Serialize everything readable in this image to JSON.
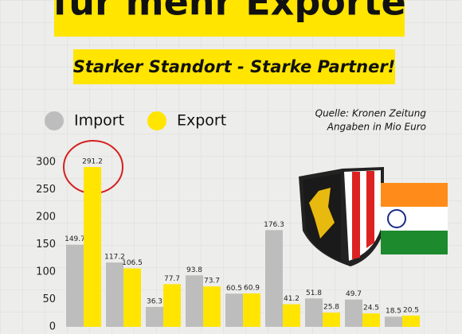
{
  "chart_data": {
    "type": "bar",
    "title": "für mehr Exporte",
    "subtitle": "Starker Standort - Starke Partner!",
    "annotations": [
      "Quelle: Kronen Zeitung",
      "Angaben in Mio Euro"
    ],
    "categories": [
      null,
      null,
      null,
      null,
      null,
      null,
      null,
      null,
      null
    ],
    "series": [
      {
        "name": "Import",
        "color": "#bdbdbd",
        "values": [
          149.7,
          117.2,
          36.3,
          93.8,
          60.5,
          176.3,
          51.8,
          49.7,
          18.5
        ]
      },
      {
        "name": "Export",
        "color": "#ffe500",
        "values": [
          291.2,
          106.5,
          77.7,
          73.7,
          60.9,
          41.2,
          25.8,
          24.5,
          20.5
        ]
      }
    ],
    "ylim": [
      0,
      300
    ],
    "yticks": [
      0,
      50,
      100,
      150,
      200,
      250,
      300
    ]
  }
}
